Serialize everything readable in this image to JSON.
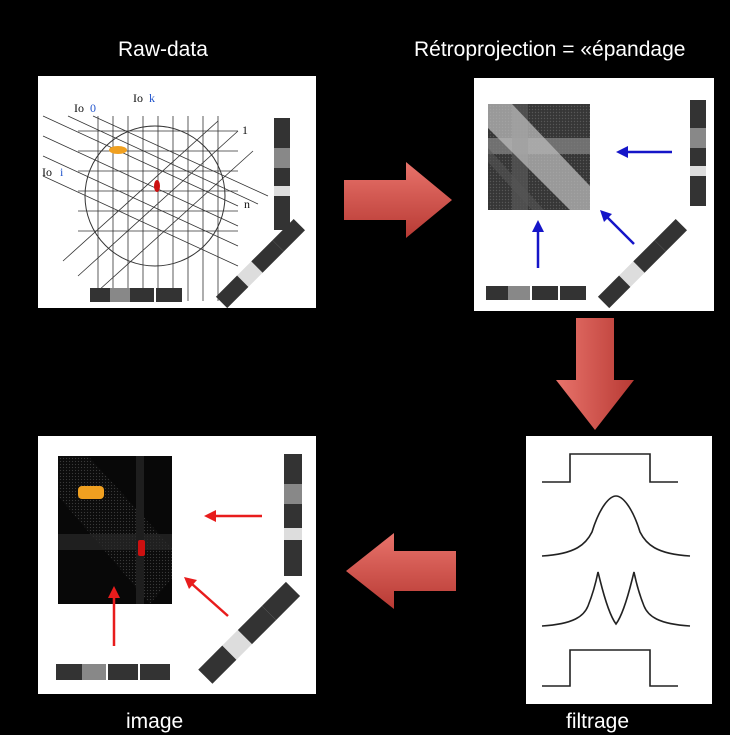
{
  "labels": {
    "raw": "Raw-data",
    "retro": "Rétroprojection = «épandage",
    "image": "image",
    "filtrage": "filtrage"
  },
  "raw_panel": {
    "io0": "Io",
    "io0_sub": "0",
    "iok": "Io",
    "iok_sub": "k",
    "ioi": "Io",
    "ioi_sub": "i",
    "line1": "1",
    "linen": "n"
  },
  "colors": {
    "background": "#000000",
    "panel": "#ffffff",
    "flow_arrow": "#d9534f",
    "blue_arrow": "#1515c8",
    "red_arrow": "#e81c1c",
    "orange_spot": "#f0a020",
    "red_spot": "#cc1010"
  }
}
